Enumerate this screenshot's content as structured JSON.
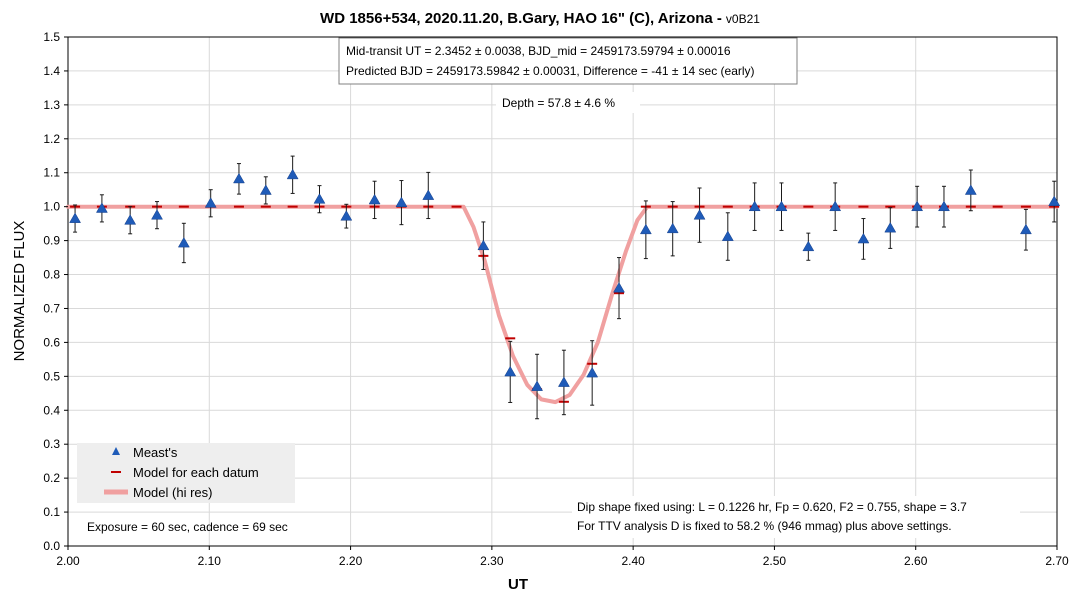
{
  "chart_data": {
    "type": "scatter",
    "title": "WD 1856+534, 2020.11.20, B.Gary, HAO 16\" (C), Arizona -",
    "title_version": "v0B21",
    "xlabel": "UT",
    "ylabel": "NORMALIZED FLUX",
    "xlim": [
      2.0,
      2.7
    ],
    "ylim": [
      0.0,
      1.5
    ],
    "x_ticks": [
      "2.00",
      "2.10",
      "2.20",
      "2.30",
      "2.40",
      "2.50",
      "2.60",
      "2.70"
    ],
    "y_ticks": [
      "0.0",
      "0.1",
      "0.2",
      "0.3",
      "0.4",
      "0.5",
      "0.6",
      "0.7",
      "0.8",
      "0.9",
      "1.0",
      "1.1",
      "1.2",
      "1.3",
      "1.4",
      "1.5"
    ],
    "grid": true,
    "legend": {
      "placement": "bottom-left",
      "entries": [
        "Meast's",
        "Model for each datum",
        "Model (hi res)"
      ]
    },
    "colors": {
      "marker": "#1f5bb8",
      "model_datum": "#c00000",
      "model_hires": "#f0a0a0"
    },
    "annotations": {
      "info_line1": "Mid-transit UT = 2.3452 ± 0.0038, BJD_mid = 2459173.59794 ± 0.00016",
      "info_line2": "Predicted BJD = 2459173.59842 ± 0.00031, Difference = -41 ± 14 sec (early)",
      "depth": "Depth = 57.8 ± 4.6 %",
      "exposure": "Exposure = 60 sec, cadence = 69 sec",
      "dip_line1": "Dip shape fixed using:  L = 0.1226 hr, Fp = 0.620, F2 = 0.755, shape = 3.7",
      "dip_line2": "For TTV analysis D is fixed  to 58.2 % (946 mmag) plus above settings."
    },
    "series": [
      {
        "name": "Meast's",
        "x": [
          2.005,
          2.024,
          2.044,
          2.063,
          2.082,
          2.101,
          2.121,
          2.14,
          2.159,
          2.178,
          2.197,
          2.217,
          2.236,
          2.255,
          2.294,
          2.313,
          2.332,
          2.351,
          2.371,
          2.39,
          2.409,
          2.428,
          2.447,
          2.467,
          2.486,
          2.505,
          2.524,
          2.543,
          2.563,
          2.582,
          2.601,
          2.62,
          2.639,
          2.678,
          2.698
        ],
        "y": [
          0.965,
          0.995,
          0.96,
          0.975,
          0.893,
          1.01,
          1.082,
          1.048,
          1.094,
          1.022,
          0.972,
          1.02,
          1.012,
          1.033,
          0.885,
          0.513,
          0.47,
          0.482,
          0.51,
          0.76,
          0.932,
          0.935,
          0.975,
          0.912,
          1.0,
          1.0,
          0.882,
          1.0,
          0.905,
          0.937,
          1.0,
          1.0,
          1.048,
          0.932,
          1.015
        ],
        "err": [
          0.04,
          0.04,
          0.04,
          0.04,
          0.058,
          0.04,
          0.045,
          0.04,
          0.055,
          0.04,
          0.035,
          0.055,
          0.065,
          0.068,
          0.07,
          0.09,
          0.095,
          0.095,
          0.095,
          0.09,
          0.085,
          0.08,
          0.08,
          0.07,
          0.07,
          0.07,
          0.04,
          0.07,
          0.06,
          0.06,
          0.06,
          0.06,
          0.06,
          0.06,
          0.06
        ]
      },
      {
        "name": "Model for each datum",
        "x": [
          2.005,
          2.024,
          2.044,
          2.063,
          2.082,
          2.101,
          2.121,
          2.14,
          2.159,
          2.178,
          2.197,
          2.217,
          2.236,
          2.255,
          2.275,
          2.294,
          2.313,
          2.332,
          2.351,
          2.371,
          2.39,
          2.409,
          2.428,
          2.447,
          2.467,
          2.486,
          2.505,
          2.524,
          2.543,
          2.563,
          2.582,
          2.601,
          2.62,
          2.639,
          2.658,
          2.678,
          2.698
        ],
        "y": [
          1.0,
          1.0,
          1.0,
          1.0,
          1.0,
          1.0,
          1.0,
          1.0,
          1.0,
          1.0,
          1.0,
          1.0,
          1.0,
          1.0,
          1.0,
          0.855,
          0.612,
          0.462,
          0.425,
          0.537,
          0.745,
          1.0,
          1.0,
          1.0,
          1.0,
          1.0,
          1.0,
          1.0,
          1.0,
          1.0,
          1.0,
          1.0,
          1.0,
          1.0,
          1.0,
          1.0,
          1.0
        ]
      },
      {
        "name": "Model (hi res)",
        "x": [
          2.0,
          2.28,
          2.287,
          2.295,
          2.305,
          2.315,
          2.325,
          2.335,
          2.345,
          2.355,
          2.365,
          2.375,
          2.385,
          2.395,
          2.403,
          2.41,
          2.7
        ],
        "y": [
          1.0,
          1.0,
          0.94,
          0.84,
          0.68,
          0.56,
          0.475,
          0.432,
          0.424,
          0.445,
          0.505,
          0.6,
          0.74,
          0.87,
          0.96,
          1.0,
          1.0
        ]
      }
    ]
  }
}
